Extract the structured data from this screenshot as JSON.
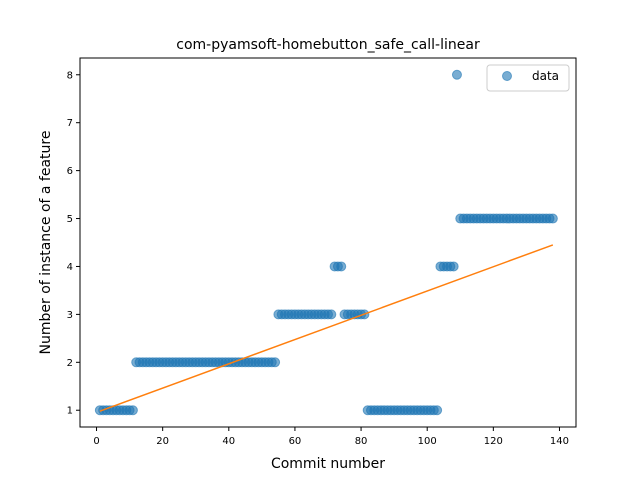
{
  "chart_data": {
    "type": "scatter",
    "title": "com-pyamsoft-homebutton_safe_call-linear",
    "xlabel": "Commit number",
    "ylabel": "Number of instance of a feature",
    "xlim": [
      -5,
      145
    ],
    "ylim": [
      0.65,
      8.35
    ],
    "xticks": [
      0,
      20,
      40,
      60,
      80,
      100,
      120,
      140
    ],
    "yticks": [
      1,
      2,
      3,
      4,
      5,
      6,
      7,
      8
    ],
    "grid": false,
    "legend_position": "top-right",
    "colors": {
      "points": "#1f77b4",
      "line": "#ff7f0e"
    },
    "series": [
      {
        "name": "data",
        "kind": "scatter",
        "points": [
          [
            1,
            1
          ],
          [
            2,
            1
          ],
          [
            3,
            1
          ],
          [
            4,
            1
          ],
          [
            5,
            1
          ],
          [
            6,
            1
          ],
          [
            7,
            1
          ],
          [
            8,
            1
          ],
          [
            9,
            1
          ],
          [
            10,
            1
          ],
          [
            11,
            1
          ],
          [
            12,
            2
          ],
          [
            13,
            2
          ],
          [
            14,
            2
          ],
          [
            15,
            2
          ],
          [
            16,
            2
          ],
          [
            17,
            2
          ],
          [
            18,
            2
          ],
          [
            19,
            2
          ],
          [
            20,
            2
          ],
          [
            21,
            2
          ],
          [
            22,
            2
          ],
          [
            23,
            2
          ],
          [
            24,
            2
          ],
          [
            25,
            2
          ],
          [
            26,
            2
          ],
          [
            27,
            2
          ],
          [
            28,
            2
          ],
          [
            29,
            2
          ],
          [
            30,
            2
          ],
          [
            31,
            2
          ],
          [
            32,
            2
          ],
          [
            33,
            2
          ],
          [
            34,
            2
          ],
          [
            35,
            2
          ],
          [
            36,
            2
          ],
          [
            37,
            2
          ],
          [
            38,
            2
          ],
          [
            39,
            2
          ],
          [
            40,
            2
          ],
          [
            41,
            2
          ],
          [
            42,
            2
          ],
          [
            43,
            2
          ],
          [
            44,
            2
          ],
          [
            45,
            2
          ],
          [
            46,
            2
          ],
          [
            47,
            2
          ],
          [
            48,
            2
          ],
          [
            49,
            2
          ],
          [
            50,
            2
          ],
          [
            51,
            2
          ],
          [
            52,
            2
          ],
          [
            53,
            2
          ],
          [
            54,
            2
          ],
          [
            55,
            3
          ],
          [
            56,
            3
          ],
          [
            57,
            3
          ],
          [
            58,
            3
          ],
          [
            59,
            3
          ],
          [
            60,
            3
          ],
          [
            61,
            3
          ],
          [
            62,
            3
          ],
          [
            63,
            3
          ],
          [
            64,
            3
          ],
          [
            65,
            3
          ],
          [
            66,
            3
          ],
          [
            67,
            3
          ],
          [
            68,
            3
          ],
          [
            69,
            3
          ],
          [
            70,
            3
          ],
          [
            71,
            3
          ],
          [
            72,
            4
          ],
          [
            73,
            4
          ],
          [
            74,
            4
          ],
          [
            75,
            3
          ],
          [
            76,
            3
          ],
          [
            77,
            3
          ],
          [
            78,
            3
          ],
          [
            79,
            3
          ],
          [
            80,
            3
          ],
          [
            81,
            3
          ],
          [
            82,
            1
          ],
          [
            83,
            1
          ],
          [
            84,
            1
          ],
          [
            85,
            1
          ],
          [
            86,
            1
          ],
          [
            87,
            1
          ],
          [
            88,
            1
          ],
          [
            89,
            1
          ],
          [
            90,
            1
          ],
          [
            91,
            1
          ],
          [
            92,
            1
          ],
          [
            93,
            1
          ],
          [
            94,
            1
          ],
          [
            95,
            1
          ],
          [
            96,
            1
          ],
          [
            97,
            1
          ],
          [
            98,
            1
          ],
          [
            99,
            1
          ],
          [
            100,
            1
          ],
          [
            101,
            1
          ],
          [
            102,
            1
          ],
          [
            103,
            1
          ],
          [
            104,
            4
          ],
          [
            105,
            4
          ],
          [
            106,
            4
          ],
          [
            107,
            4
          ],
          [
            108,
            4
          ],
          [
            109,
            8
          ],
          [
            110,
            5
          ],
          [
            111,
            5
          ],
          [
            112,
            5
          ],
          [
            113,
            5
          ],
          [
            114,
            5
          ],
          [
            115,
            5
          ],
          [
            116,
            5
          ],
          [
            117,
            5
          ],
          [
            118,
            5
          ],
          [
            119,
            5
          ],
          [
            120,
            5
          ],
          [
            121,
            5
          ],
          [
            122,
            5
          ],
          [
            123,
            5
          ],
          [
            124,
            5
          ],
          [
            125,
            5
          ],
          [
            126,
            5
          ],
          [
            127,
            5
          ],
          [
            128,
            5
          ],
          [
            129,
            5
          ],
          [
            130,
            5
          ],
          [
            131,
            5
          ],
          [
            132,
            5
          ],
          [
            133,
            5
          ],
          [
            134,
            5
          ],
          [
            135,
            5
          ],
          [
            136,
            5
          ],
          [
            137,
            5
          ],
          [
            138,
            5
          ]
        ]
      },
      {
        "name": "",
        "kind": "line",
        "points": [
          [
            1,
            0.98
          ],
          [
            138,
            4.45
          ]
        ]
      }
    ]
  }
}
